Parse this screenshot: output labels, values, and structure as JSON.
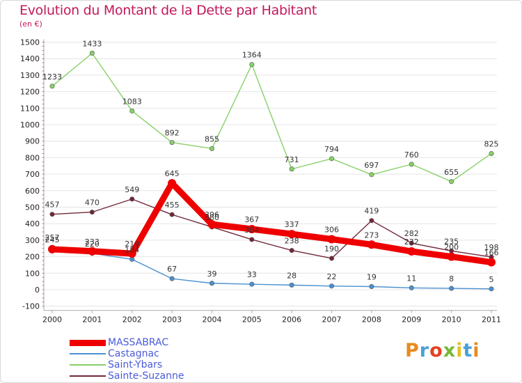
{
  "chart_data": {
    "type": "line",
    "title": "Evolution du Montant de la Dette par Habitant",
    "subtitle": "(en €)",
    "x": [
      "2000",
      "2001",
      "2002",
      "2003",
      "2004",
      "2005",
      "2006",
      "2007",
      "2008",
      "2009",
      "2010",
      "2011"
    ],
    "yticks": [
      -100,
      0,
      100,
      200,
      300,
      400,
      500,
      600,
      700,
      800,
      900,
      1000,
      1100,
      1200,
      1300,
      1400,
      1500
    ],
    "ylim": [
      -100,
      1500
    ],
    "grid": "horizontal",
    "legend_position": "bottom-left",
    "series": [
      {
        "name": "MASSABRAC",
        "color": "#ee0000",
        "values": [
          245,
          233,
          219,
          645,
          396,
          367,
          337,
          306,
          273,
          232,
          200,
          166
        ],
        "labels": [
          "245",
          "233",
          "219",
          "645",
          "396",
          "367",
          "337",
          "306",
          "273",
          "232",
          "200",
          "166"
        ]
      },
      {
        "name": "Castagnac",
        "color": "#4a90d0",
        "values": [
          257,
          220,
          184,
          67,
          39,
          33,
          28,
          22,
          19,
          11,
          8,
          5
        ],
        "labels": [
          "257",
          "220",
          "184",
          "67",
          "39",
          "33",
          "28",
          "22",
          "19",
          "11",
          "8",
          "5"
        ]
      },
      {
        "name": "Saint-Ybars",
        "color": "#88d068",
        "values": [
          1233,
          1433,
          1083,
          892,
          855,
          1364,
          731,
          794,
          697,
          760,
          655,
          825
        ],
        "labels": [
          "1233",
          "1433",
          "1083",
          "892",
          "855",
          "1364",
          "731",
          "794",
          "697",
          "760",
          "655",
          "825"
        ]
      },
      {
        "name": "Sainte-Suzanne",
        "color": "#702838",
        "values": [
          457,
          470,
          549,
          455,
          380,
          304,
          238,
          190,
          419,
          282,
          235,
          198
        ],
        "labels": [
          "457",
          "470",
          "549",
          "455",
          "380",
          "304",
          "238",
          "190",
          "419",
          "282",
          "235",
          "198"
        ]
      }
    ]
  },
  "brand": {
    "logo_text": "Proxiti"
  }
}
